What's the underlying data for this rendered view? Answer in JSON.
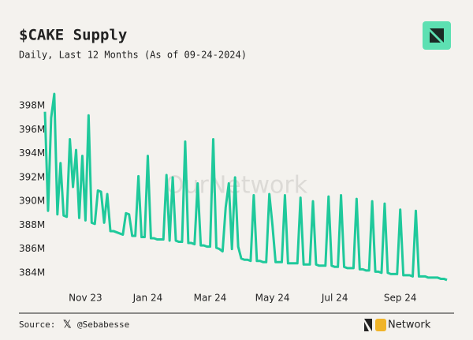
{
  "chart_data": {
    "type": "line",
    "title": "$CAKE Supply",
    "subtitle": "Daily, Last 12 Months (As of 09-24-2024)",
    "watermark": "OurNetwork",
    "color": "#1fc99b",
    "categories": [
      null,
      null,
      null,
      null,
      null,
      null,
      null,
      null,
      null,
      null,
      null,
      null,
      null,
      "Nov 23",
      null,
      null,
      null,
      null,
      null,
      null,
      null,
      null,
      null,
      null,
      null,
      null,
      null,
      null,
      null,
      null,
      null,
      null,
      null,
      "Jan 24",
      null,
      null,
      null,
      null,
      null,
      null,
      null,
      null,
      null,
      null,
      null,
      null,
      null,
      null,
      null,
      null,
      null,
      null,
      null,
      "Mar 24",
      null,
      null,
      null,
      null,
      null,
      null,
      null,
      null,
      null,
      null,
      null,
      null,
      null,
      null,
      null,
      null,
      null,
      null,
      null,
      "May 24",
      null,
      null,
      null,
      null,
      null,
      null,
      null,
      null,
      null,
      null,
      null,
      null,
      null,
      null,
      null,
      null,
      null,
      null,
      null,
      "Jul 24",
      null,
      null,
      null,
      null,
      null,
      null,
      null,
      null,
      null,
      null,
      null,
      null,
      null,
      null,
      null,
      null,
      null,
      null,
      null,
      null,
      "Sep 24",
      null,
      null,
      null,
      null,
      null,
      null,
      null,
      null,
      null,
      null,
      null,
      null,
      null,
      null,
      null
    ],
    "values": [
      397.5,
      389.2,
      397,
      399,
      388.9,
      393.2,
      388.8,
      388.7,
      395.2,
      391.2,
      394.3,
      388.6,
      393.8,
      388.4,
      397.2,
      388.2,
      388.1,
      390.9,
      390.8,
      388.2,
      390.6,
      387.5,
      387.5,
      387.4,
      387.3,
      387.2,
      389,
      388.9,
      387.1,
      387.1,
      392.1,
      387.0,
      387.0,
      393.8,
      386.9,
      386.9,
      386.8,
      386.8,
      386.8,
      392.2,
      386.7,
      392,
      386.7,
      386.6,
      386.6,
      395,
      386.5,
      386.5,
      386.4,
      391.5,
      386.3,
      386.3,
      386.2,
      386.2,
      395.2,
      386.1,
      386,
      385.8,
      389.5,
      391.5,
      386,
      392,
      386.2,
      385.2,
      385.1,
      385.1,
      385,
      390.5,
      385,
      385,
      384.9,
      384.9,
      390.6,
      388,
      384.9,
      384.9,
      384.9,
      390.5,
      384.8,
      384.8,
      384.8,
      384.8,
      390.3,
      384.7,
      384.7,
      384.7,
      390,
      384.7,
      384.6,
      384.6,
      384.6,
      390.4,
      384.6,
      384.5,
      384.5,
      390.5,
      384.5,
      384.4,
      384.4,
      384.4,
      390.2,
      384.3,
      384.3,
      384.2,
      384.2,
      390,
      384.1,
      384.1,
      384,
      389.8,
      384,
      383.9,
      383.9,
      383.9,
      389.3,
      383.8,
      383.8,
      383.8,
      383.7,
      389.2,
      383.7,
      383.7,
      383.7,
      383.6,
      383.6,
      383.6,
      383.6,
      383.5,
      383.5,
      383.4
    ],
    "ylim": [
      383,
      399
    ],
    "yticks": [
      {
        "value": 384,
        "label": "384M"
      },
      {
        "value": 386,
        "label": "386M"
      },
      {
        "value": 388,
        "label": "388M"
      },
      {
        "value": 390,
        "label": "390M"
      },
      {
        "value": 392,
        "label": "392M"
      },
      {
        "value": 394,
        "label": "394M"
      },
      {
        "value": 396,
        "label": "396M"
      },
      {
        "value": 398,
        "label": "398M"
      }
    ],
    "grid": false
  },
  "footer": {
    "source": "Source:",
    "handle": "@Sebabesse",
    "brand": "Network"
  }
}
